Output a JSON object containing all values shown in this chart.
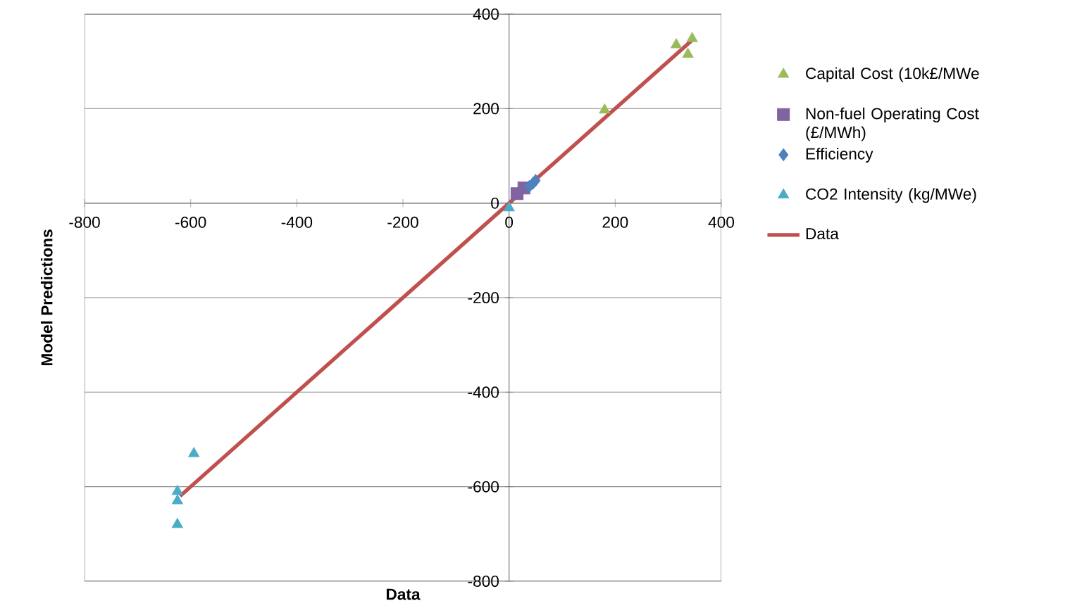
{
  "chart_data": {
    "type": "scatter",
    "xlabel": "Data",
    "ylabel": "Model Predictions",
    "xlim": [
      -800,
      400
    ],
    "ylim": [
      -800,
      400
    ],
    "xticks": [
      -800,
      -600,
      -400,
      -200,
      0,
      200,
      400
    ],
    "yticks": [
      -800,
      -600,
      -400,
      -200,
      0,
      200,
      400
    ],
    "grid": "y",
    "legend": "right",
    "series": [
      {
        "name": "Capital Cost (10k£/MWe",
        "color": "#9bbb59",
        "marker": "triangle",
        "x": [
          180,
          315,
          337,
          345
        ],
        "values": [
          197,
          335,
          315,
          348
        ]
      },
      {
        "name": "Non-fuel Operating Cost (£/MWh)",
        "color": "#8064a2",
        "marker": "square",
        "x": [
          15,
          28
        ],
        "values": [
          20,
          32
        ]
      },
      {
        "name": "Efficiency",
        "color": "#4f81bd",
        "marker": "diamond",
        "x": [
          38,
          45,
          50
        ],
        "values": [
          35,
          42,
          48
        ]
      },
      {
        "name": "CO2 Intensity (kg/MWe)",
        "color": "#4bacc6",
        "marker": "triangle",
        "x": [
          0,
          -594,
          -625,
          -625,
          -625
        ],
        "values": [
          -10,
          -530,
          -610,
          -630,
          -680
        ]
      },
      {
        "name": "Data",
        "type": "line",
        "color": "#c0504d",
        "marker": "none",
        "line_style": "solid",
        "x": [
          -620,
          345
        ],
        "values": [
          -620,
          345
        ]
      }
    ]
  }
}
